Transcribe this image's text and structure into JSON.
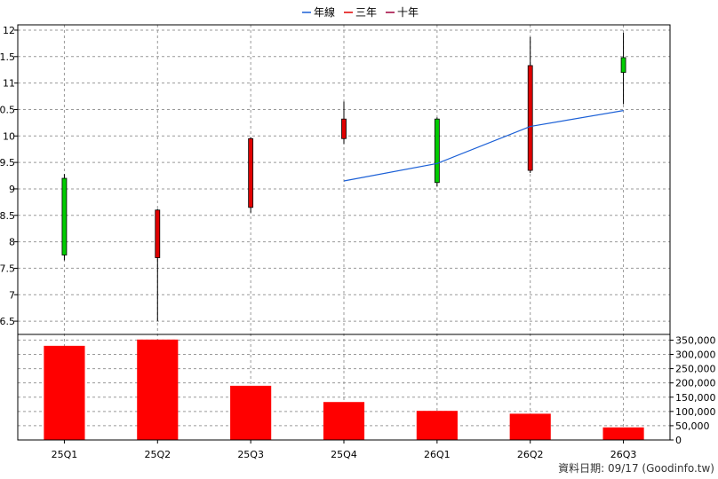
{
  "chart_data": {
    "type": "candlestick-volume",
    "legend": [
      {
        "name": "年線",
        "color": "#1a5fd6"
      },
      {
        "name": "三年",
        "color": "#e00000"
      },
      {
        "name": "十年",
        "color": "#a0003c"
      }
    ],
    "categories": [
      "25Q1",
      "25Q2",
      "25Q3",
      "25Q4",
      "26Q1",
      "26Q2",
      "26Q3"
    ],
    "price_axis": {
      "ylim": [
        6.25,
        12.1
      ],
      "ticks": [
        "12",
        "11.5",
        "11",
        "10.5",
        "10",
        "9.5",
        "9",
        "8.5",
        "8",
        "7.5",
        "7",
        "6.5"
      ]
    },
    "volume_axis": {
      "ylim": [
        0,
        370000
      ],
      "ticks": [
        "350,000",
        "300,000",
        "250,000",
        "200,000",
        "150,000",
        "100,000",
        "50,000",
        "0"
      ]
    },
    "candles": [
      {
        "open": 7.75,
        "high": 9.28,
        "low": 7.65,
        "close": 9.2,
        "color": "#00cc00"
      },
      {
        "open": 8.6,
        "high": 8.62,
        "low": 6.5,
        "close": 7.7,
        "color": "#e00000"
      },
      {
        "open": 9.95,
        "high": 9.97,
        "low": 8.55,
        "close": 8.65,
        "color": "#e00000"
      },
      {
        "open": 10.32,
        "high": 10.65,
        "low": 9.85,
        "close": 9.95,
        "color": "#e00000"
      },
      {
        "open": 9.12,
        "high": 10.35,
        "low": 9.05,
        "close": 10.32,
        "color": "#00cc00"
      },
      {
        "open": 11.33,
        "high": 11.87,
        "low": 9.3,
        "close": 9.35,
        "color": "#e00000"
      },
      {
        "open": 11.2,
        "high": 11.95,
        "low": 10.6,
        "close": 11.48,
        "color": "#00cc00"
      }
    ],
    "year_line": {
      "start_index": 3,
      "values": [
        9.15,
        9.48,
        10.18,
        10.48
      ],
      "color": "#1a5fd6"
    },
    "volumes": [
      330000,
      352000,
      190000,
      133000,
      102000,
      92000,
      44000
    ],
    "volume_color": "#ff0000",
    "grid": true
  },
  "footer": {
    "text": "資料日期: 09/17  (Goodinfo.tw)"
  }
}
